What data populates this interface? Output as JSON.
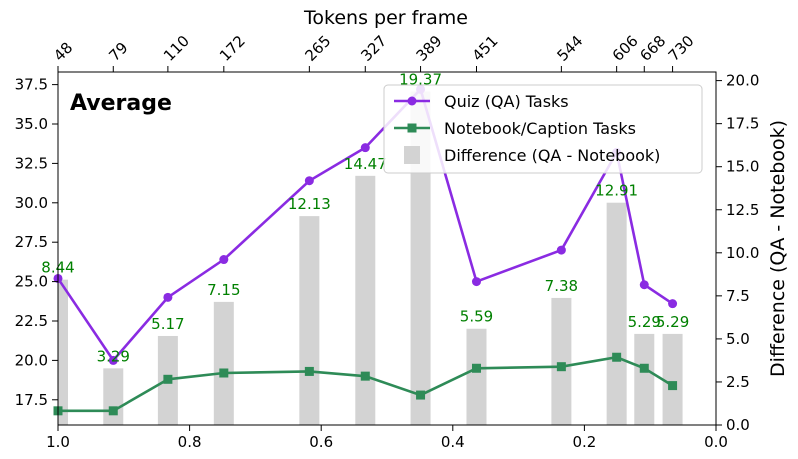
{
  "chart_data": {
    "type": "line+bar",
    "panel_title": "Average",
    "x_bottom": {
      "label": "",
      "lim": [
        1.0,
        0.0
      ],
      "ticks": [
        1.0,
        0.8,
        0.6,
        0.4,
        0.2,
        0.0
      ],
      "tick_labels": [
        "1.0",
        "0.8",
        "0.6",
        "0.4",
        "0.2",
        "0.0"
      ]
    },
    "x_top": {
      "label": "Tokens per frame",
      "tick_labels": [
        "48",
        "79",
        "110",
        "172",
        "265",
        "327",
        "389",
        "451",
        "544",
        "606",
        "668",
        "730"
      ]
    },
    "y_left": {
      "label": "",
      "lim": [
        15.9,
        38.3
      ],
      "ticks": [
        17.5,
        20.0,
        22.5,
        25.0,
        27.5,
        30.0,
        32.5,
        35.0,
        37.5
      ],
      "tick_labels": [
        "17.5",
        "20.0",
        "22.5",
        "25.0",
        "27.5",
        "30.0",
        "32.5",
        "35.0",
        "37.5"
      ]
    },
    "y_right": {
      "label": "Difference (QA - Notebook)",
      "lim": [
        0,
        20.5
      ],
      "ticks": [
        0.0,
        2.5,
        5.0,
        7.5,
        10.0,
        12.5,
        15.0,
        17.5,
        20.0
      ],
      "tick_labels": [
        "0.0",
        "2.5",
        "5.0",
        "7.5",
        "10.0",
        "12.5",
        "15.0",
        "17.5",
        "20.0"
      ]
    },
    "x": [
      1.0,
      0.916,
      0.833,
      0.748,
      0.618,
      0.533,
      0.449,
      0.364,
      0.235,
      0.151,
      0.109,
      0.066
    ],
    "series": [
      {
        "name": "Quiz (QA) Tasks",
        "color": "#8a2be2",
        "marker": "circle",
        "axis": "left",
        "values": [
          25.2,
          20.0,
          24.0,
          26.4,
          31.4,
          33.5,
          37.2,
          25.0,
          27.0,
          33.2,
          24.8,
          23.6
        ]
      },
      {
        "name": "Notebook/Caption Tasks",
        "color": "#2e8b57",
        "marker": "square",
        "axis": "left",
        "values": [
          16.8,
          16.8,
          18.8,
          19.2,
          19.3,
          19.0,
          17.8,
          19.5,
          19.6,
          20.2,
          19.5,
          18.4
        ]
      },
      {
        "name": "Difference (QA - Notebook)",
        "color": "#d3d3d3",
        "type": "bar",
        "axis": "right",
        "values": [
          8.44,
          3.29,
          5.17,
          7.15,
          12.13,
          14.47,
          19.37,
          5.59,
          7.38,
          12.91,
          5.29,
          5.29
        ],
        "labels": [
          "8.44",
          "3.29",
          "5.17",
          "7.15",
          "12.13",
          "14.47",
          "19.37",
          "5.59",
          "7.38",
          "12.91",
          "5.29",
          "5.29"
        ]
      }
    ],
    "legend_position": "top-right"
  }
}
